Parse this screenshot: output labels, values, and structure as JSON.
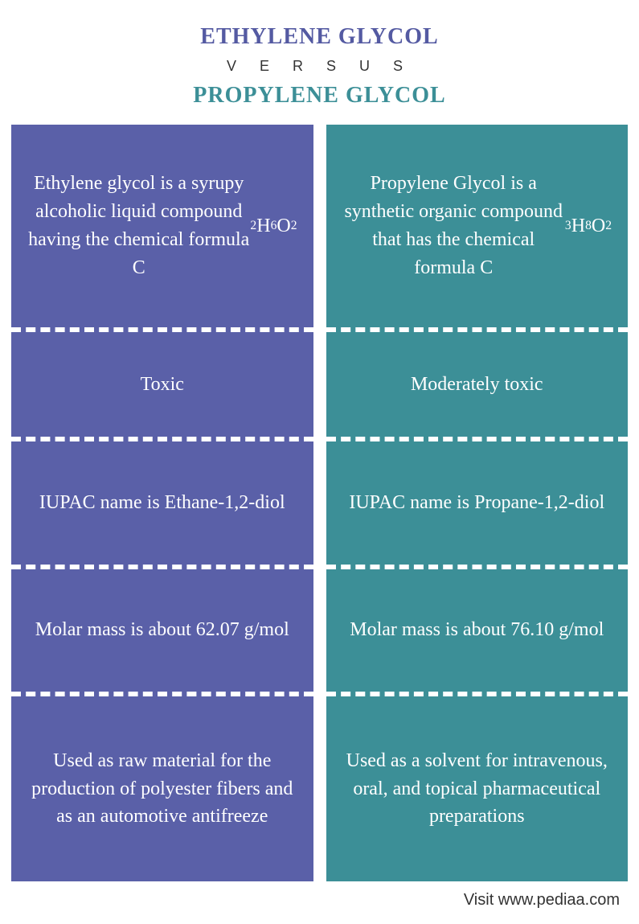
{
  "header": {
    "title_left": "ETHYLENE GLYCOL",
    "versus": "V E R S U S",
    "title_right": "PROPYLENE GLYCOL",
    "title_left_color": "#545aa2",
    "title_right_color": "#3c8f97"
  },
  "columns": {
    "left": {
      "bg_color": "#5a60a8",
      "rows": [
        "Ethylene glycol is a syrupy alcoholic liquid compound having the chemical formula C<sub>2</sub>H<sub>6</sub>O<sub>2</sub>",
        "Toxic",
        "IUPAC name is Ethane-1,2-diol",
        "Molar mass is about 62.07 g/mol",
        "Used as raw material for the production of polyester fibers and as an automotive antifreeze"
      ]
    },
    "right": {
      "bg_color": "#3c8f97",
      "rows": [
        "Propylene Glycol is a synthetic organic compound that has the chemical formula C<sub>3</sub>H<sub>8</sub>O<sub>2</sub>",
        "Moderately toxic",
        "IUPAC name is Propane-1,2-diol",
        "Molar mass is about 76.10 g/mol",
        "Used as a solvent for intravenous, oral, and topical pharmaceutical preparations"
      ]
    }
  },
  "footer": {
    "text": "Visit www.pediaa.com"
  },
  "style": {
    "page_bg": "#ffffff",
    "divider_color": "#ffffff",
    "text_color": "#ffffff",
    "cell_fontsize": 24,
    "title_fontsize": 28
  }
}
